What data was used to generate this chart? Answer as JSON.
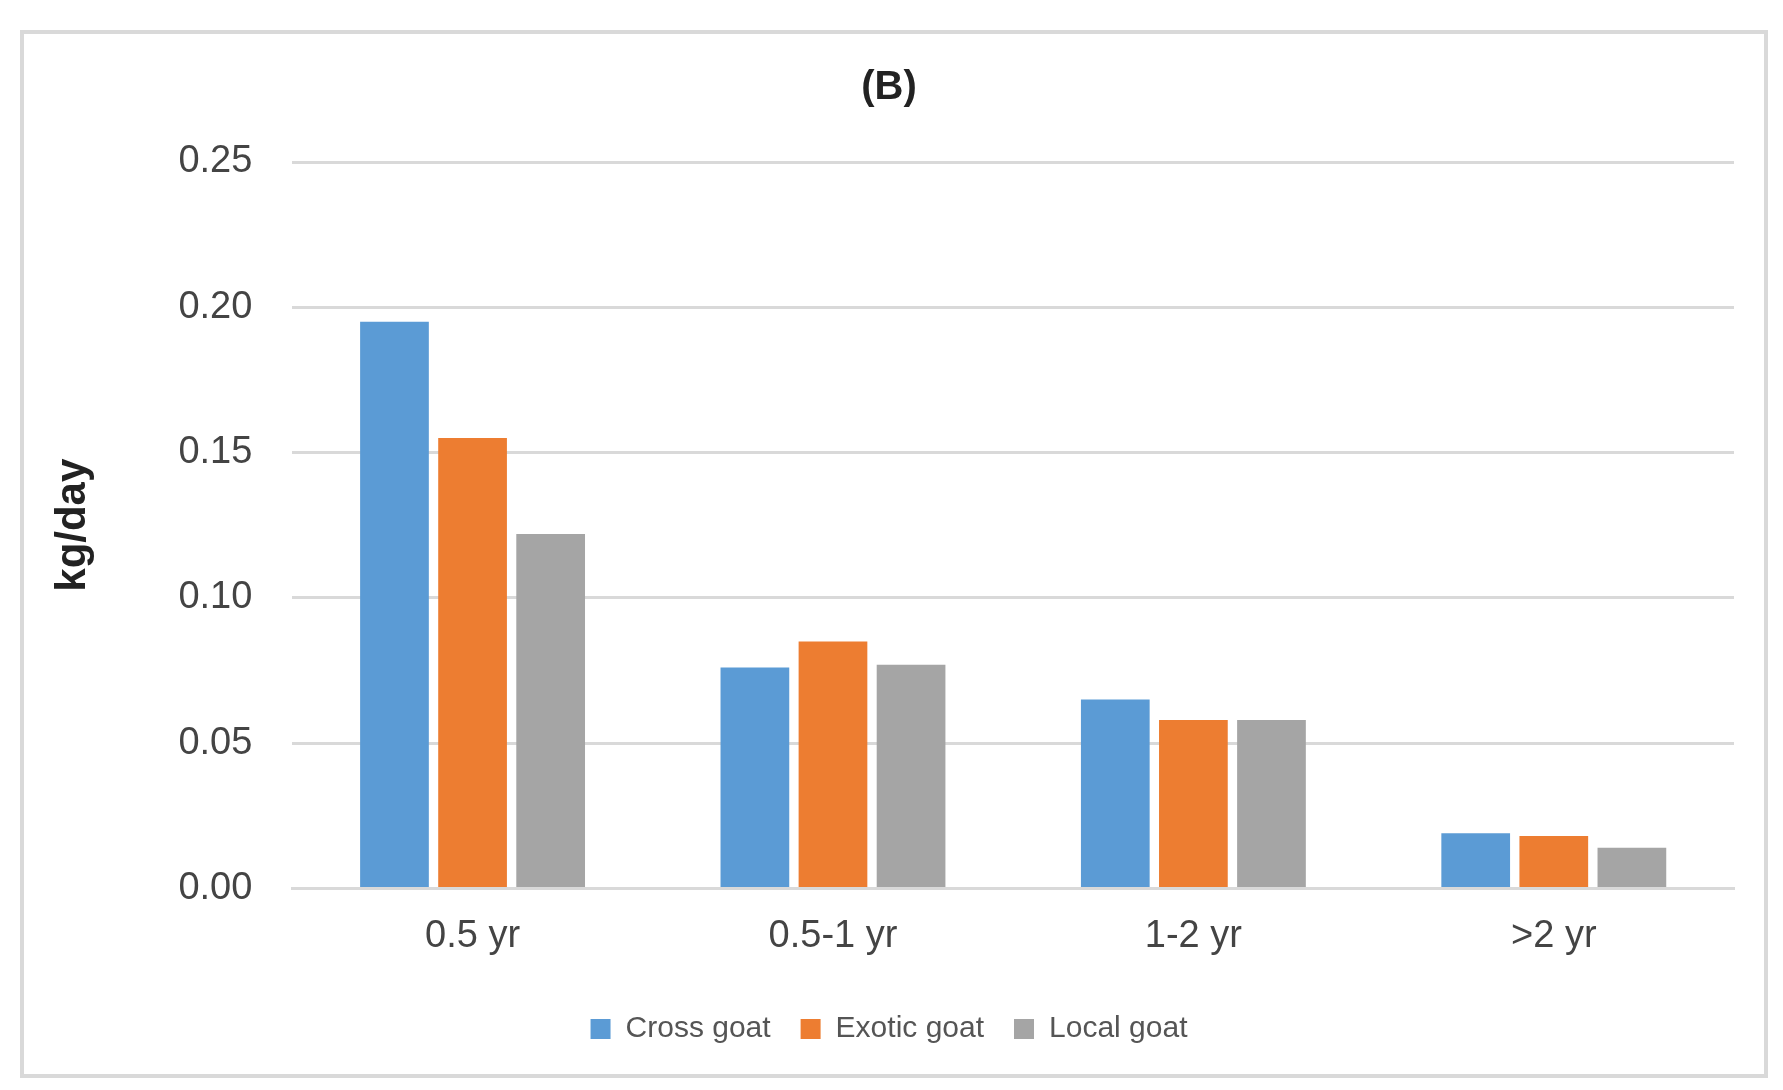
{
  "chart_data": {
    "type": "bar",
    "title": "(B)",
    "ylabel": "kg/day",
    "categories": [
      "0.5 yr",
      "0.5-1 yr",
      "1-2 yr",
      ">2 yr"
    ],
    "series": [
      {
        "name": "Cross goat",
        "color": "#5b9bd5",
        "values": [
          0.195,
          0.076,
          0.065,
          0.019
        ]
      },
      {
        "name": "Exotic goat",
        "color": "#ed7d31",
        "values": [
          0.155,
          0.085,
          0.058,
          0.018
        ]
      },
      {
        "name": "Local goat",
        "color": "#a5a5a5",
        "values": [
          0.122,
          0.077,
          0.058,
          0.014
        ]
      }
    ],
    "ylim": [
      0,
      0.25
    ],
    "yticks": [
      {
        "value": 0,
        "label": "0.00"
      },
      {
        "value": 0.05,
        "label": "0.05"
      },
      {
        "value": 0.1,
        "label": "0.10"
      },
      {
        "value": 0.15,
        "label": "0.15"
      },
      {
        "value": 0.2,
        "label": "0.20"
      },
      {
        "value": 0.25,
        "label": "0.25"
      }
    ],
    "grid": "y",
    "legend": "bottom"
  }
}
